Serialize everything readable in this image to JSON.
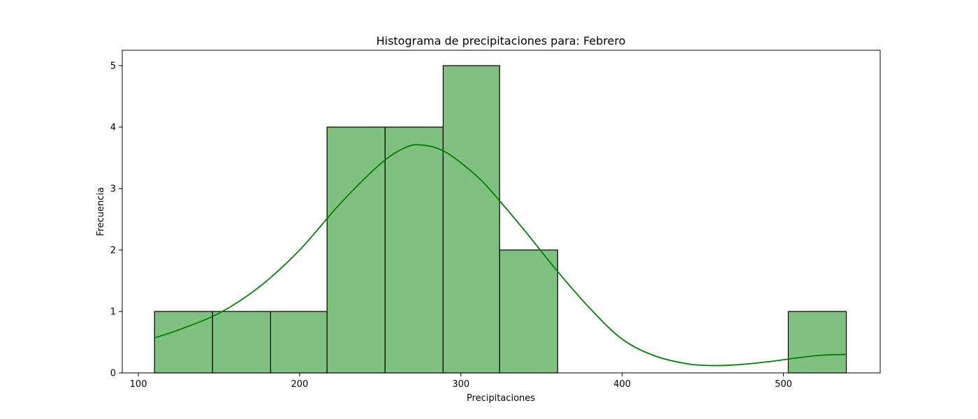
{
  "chart_data": {
    "type": "bar",
    "title": "Histograma de precipitaciones para: Febrero",
    "xlabel": "Precipitaciones",
    "ylabel": "Frecuencia",
    "xlim": [
      90,
      560
    ],
    "ylim": [
      0,
      5.25
    ],
    "xticks": [
      100,
      200,
      300,
      400,
      500
    ],
    "yticks": [
      0,
      1,
      2,
      3,
      4,
      5
    ],
    "bins": [
      {
        "start": 110,
        "end": 146,
        "count": 1
      },
      {
        "start": 146,
        "end": 182,
        "count": 1
      },
      {
        "start": 182,
        "end": 217,
        "count": 1
      },
      {
        "start": 217,
        "end": 253,
        "count": 4
      },
      {
        "start": 253,
        "end": 289,
        "count": 4
      },
      {
        "start": 289,
        "end": 324,
        "count": 5
      },
      {
        "start": 324,
        "end": 360,
        "count": 2
      },
      {
        "start": 503,
        "end": 539,
        "count": 1
      }
    ],
    "kde": {
      "x": [
        110,
        125,
        150,
        175,
        200,
        225,
        250,
        265,
        275,
        290,
        310,
        325,
        340,
        360,
        380,
        400,
        420,
        440,
        455,
        470,
        490,
        510,
        525,
        539
      ],
      "y": [
        0.57,
        0.7,
        0.97,
        1.4,
        2.0,
        2.75,
        3.4,
        3.66,
        3.71,
        3.6,
        3.2,
        2.77,
        2.3,
        1.65,
        1.05,
        0.55,
        0.28,
        0.15,
        0.12,
        0.13,
        0.18,
        0.25,
        0.29,
        0.3
      ]
    },
    "grid": false,
    "colors": {
      "bar_fill": "#80c080",
      "bar_edge": "#000000",
      "kde_line": "#008000"
    }
  }
}
